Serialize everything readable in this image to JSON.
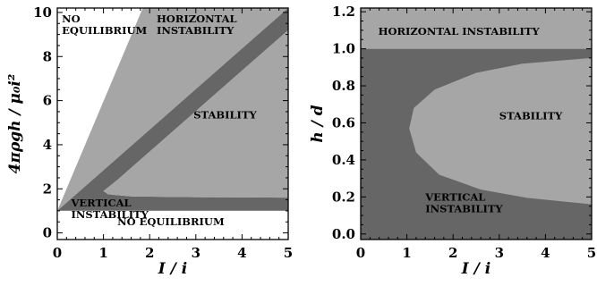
{
  "colors": {
    "stable": "#666666",
    "unstable": "#a6a6a6",
    "no_equilibrium": "#ffffff",
    "frame": "#000000"
  },
  "chart_data": [
    {
      "type": "area",
      "title": "",
      "xlabel": "I / i",
      "ylabel": "4πρgh / μ₀i²",
      "xlim": [
        0,
        5
      ],
      "ylim": [
        -0.3,
        10.2
      ],
      "xticks": [
        "0",
        "1",
        "2",
        "3",
        "4",
        "5"
      ],
      "yticks": [
        "0",
        "2",
        "4",
        "6",
        "8",
        "10"
      ],
      "grid": false,
      "legend": "none",
      "regions": [
        {
          "label": "NO EQUILIBRIUM",
          "lines": [
            "NO",
            "EQUILIBRIUM"
          ],
          "fill": "no_equilibrium",
          "polygon": [
            [
              0,
              10.2
            ],
            [
              1.85,
              10.2
            ],
            [
              0,
              1.0
            ]
          ]
        },
        {
          "label": "HORIZONTAL INSTABILITY",
          "lines": [
            "HORIZONTAL",
            "INSTABILITY"
          ],
          "fill": "unstable",
          "polygon": [
            [
              0,
              1.0
            ],
            [
              1.85,
              10.2
            ],
            [
              5,
              10.2
            ],
            [
              5,
              10.2
            ]
          ]
        },
        {
          "label": "STABILITY",
          "lines": [
            "STABILITY"
          ],
          "fill": "stable",
          "polygon": [
            [
              0,
              1.0
            ],
            [
              5,
              10.2
            ],
            [
              5,
              9.2
            ],
            [
              1.3,
              2.4
            ],
            [
              1.0,
              1.9
            ],
            [
              1.1,
              1.75
            ],
            [
              1.6,
              1.66
            ],
            [
              3.0,
              1.62
            ],
            [
              5,
              1.6
            ],
            [
              5,
              1.0
            ]
          ]
        },
        {
          "label": "VERTICAL INSTABILITY",
          "lines": [
            "VERTICAL",
            "INSTABILITY"
          ],
          "fill": "unstable",
          "polygon": [
            [
              5,
              9.2
            ],
            [
              1.3,
              2.4
            ],
            [
              1.0,
              1.9
            ],
            [
              1.1,
              1.75
            ],
            [
              1.6,
              1.66
            ],
            [
              3.0,
              1.62
            ],
            [
              5,
              1.6
            ]
          ]
        },
        {
          "label": "NO EQUILIBRIUM",
          "lines": [
            "NO EQUILIBRIUM"
          ],
          "fill": "no_equilibrium",
          "polygon": [
            [
              0,
              -0.3
            ],
            [
              5,
              -0.3
            ],
            [
              5,
              1.0
            ],
            [
              0,
              1.0
            ]
          ]
        }
      ],
      "label_positions": [
        [
          0.1,
          9.55
        ],
        [
          2.15,
          9.55
        ],
        [
          2.95,
          5.2
        ],
        [
          0.3,
          1.2
        ],
        [
          1.3,
          0.35
        ]
      ]
    },
    {
      "type": "area",
      "title": "",
      "xlabel": "I / i",
      "ylabel": "h / d",
      "xlim": [
        0,
        5
      ],
      "ylim": [
        -0.03,
        1.22
      ],
      "xticks": [
        "0",
        "1",
        "2",
        "3",
        "4",
        "5"
      ],
      "yticks": [
        "0.0",
        "0.2",
        "0.4",
        "0.6",
        "0.8",
        "1.0",
        "1.2"
      ],
      "grid": false,
      "legend": "none",
      "regions": [
        {
          "label": "HORIZONTAL INSTABILITY",
          "lines": [
            "HORIZONTAL INSTABILITY"
          ],
          "fill": "unstable",
          "polygon": [
            [
              0,
              1.0
            ],
            [
              5,
              1.0
            ],
            [
              5,
              1.22
            ],
            [
              0,
              1.22
            ]
          ]
        },
        {
          "label": "STABILITY",
          "lines": [
            "STABILITY"
          ],
          "fill": "stable",
          "polygon": [
            [
              0,
              -0.03
            ],
            [
              5,
              -0.03
            ],
            [
              5,
              1.0
            ],
            [
              0,
              1.0
            ]
          ]
        },
        {
          "label": "VERTICAL INSTABILITY",
          "lines": [
            "VERTICAL",
            "INSTABILITY"
          ],
          "fill": "unstable",
          "polygon": [
            [
              5,
              0.95
            ],
            [
              3.5,
              0.92
            ],
            [
              2.5,
              0.87
            ],
            [
              1.6,
              0.78
            ],
            [
              1.15,
              0.68
            ],
            [
              1.05,
              0.57
            ],
            [
              1.2,
              0.44
            ],
            [
              1.7,
              0.32
            ],
            [
              2.6,
              0.24
            ],
            [
              3.6,
              0.195
            ],
            [
              5,
              0.16
            ]
          ]
        }
      ],
      "label_positions": [
        [
          0.38,
          1.075
        ],
        [
          3.0,
          0.62
        ],
        [
          1.4,
          0.18
        ]
      ]
    }
  ]
}
